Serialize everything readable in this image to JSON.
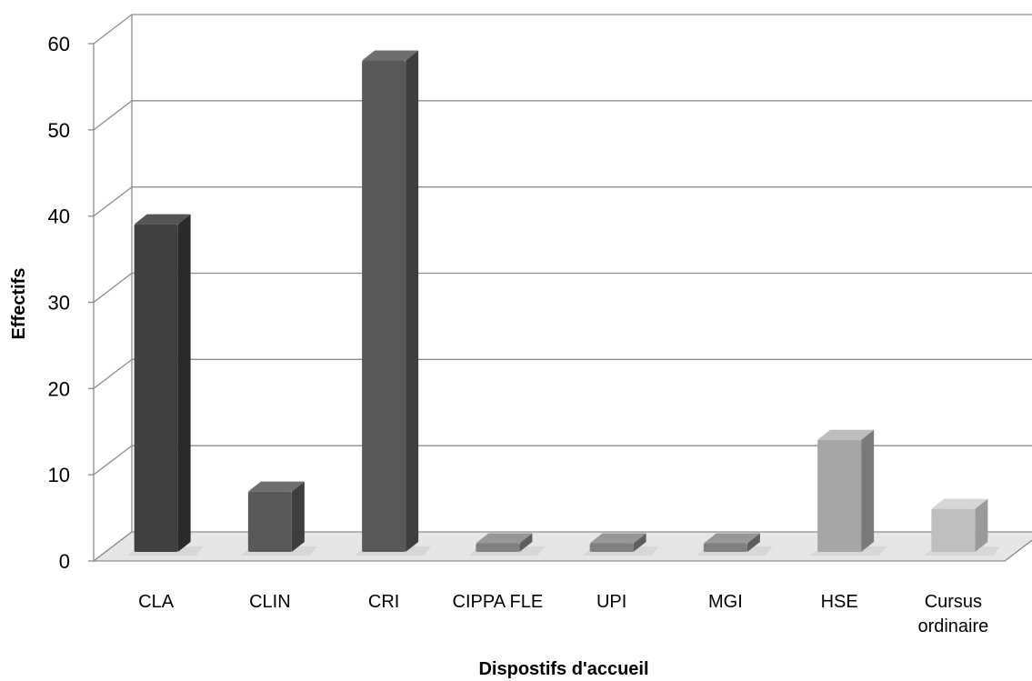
{
  "chart_data": {
    "type": "bar",
    "xlabel": "Dispostifs d'accueil",
    "ylabel": "Effectifs",
    "ylim": [
      0,
      60
    ],
    "yticks": [
      0,
      10,
      20,
      30,
      40,
      50,
      60
    ],
    "grid": true,
    "categories": [
      [
        "CLA"
      ],
      [
        "CLIN"
      ],
      [
        "CRI"
      ],
      [
        "CIPPA FLE"
      ],
      [
        "UPI"
      ],
      [
        "MGI"
      ],
      [
        "HSE"
      ],
      [
        "Cursus",
        "ordinaire"
      ]
    ],
    "values": [
      38,
      7,
      57,
      1,
      1,
      1,
      13,
      5
    ],
    "bar_colors": [
      "#404040",
      "#595959",
      "#595959",
      "#808080",
      "#808080",
      "#808080",
      "#a6a6a6",
      "#bfbfbf"
    ],
    "bar_side_colors": [
      "#2b2b2b",
      "#3e3e3e",
      "#3e3e3e",
      "#5e5e5e",
      "#5e5e5e",
      "#5e5e5e",
      "#7a7a7a",
      "#9a9a9a"
    ],
    "bar_top_colors": [
      "#555555",
      "#6e6e6e",
      "#6e6e6e",
      "#979797",
      "#979797",
      "#979797",
      "#bdbdbd",
      "#d6d6d6"
    ]
  }
}
